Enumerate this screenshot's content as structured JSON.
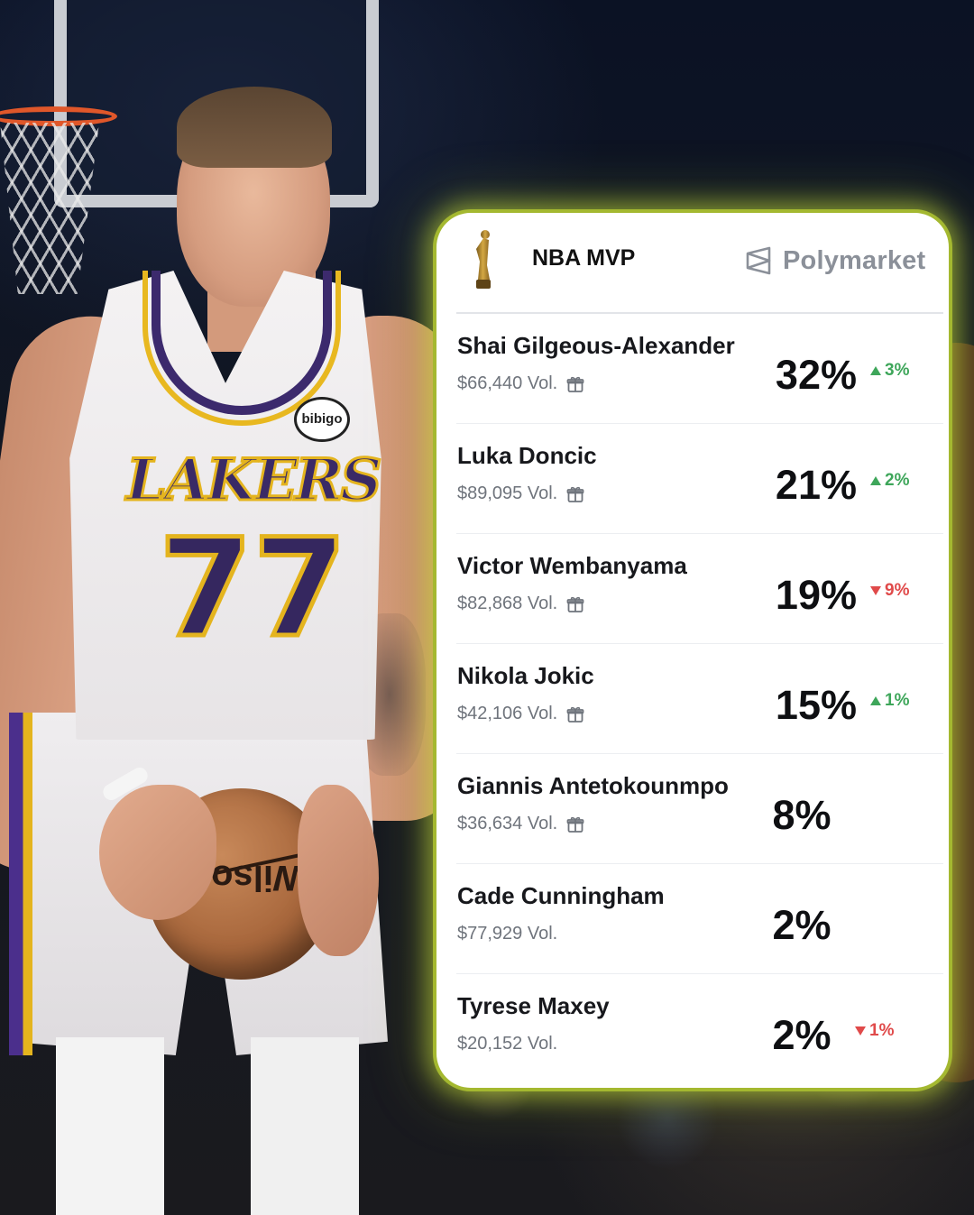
{
  "card": {
    "title": "NBA MVP",
    "brand": "Polymarket",
    "colors": {
      "up": "#3ea65a",
      "down": "#e04a4a",
      "glow": "#cde63c"
    },
    "candidates": [
      {
        "name": "Shai Gilgeous-Alexander",
        "volume": "$66,440 Vol.",
        "gift_icon": true,
        "probability": "32%",
        "change": "3%",
        "direction": "up"
      },
      {
        "name": "Luka Doncic",
        "volume": "$89,095 Vol.",
        "gift_icon": true,
        "probability": "21%",
        "change": "2%",
        "direction": "up"
      },
      {
        "name": "Victor Wembanyama",
        "volume": "$82,868 Vol.",
        "gift_icon": true,
        "probability": "19%",
        "change": "9%",
        "direction": "down"
      },
      {
        "name": "Nikola Jokic",
        "volume": "$42,106 Vol.",
        "gift_icon": true,
        "probability": "15%",
        "change": "1%",
        "direction": "up"
      },
      {
        "name": "Giannis Antetokounmpo",
        "volume": "$36,634 Vol.",
        "gift_icon": true,
        "probability": "8%",
        "change": "",
        "direction": "none"
      },
      {
        "name": "Cade Cunningham",
        "volume": "$77,929 Vol.",
        "gift_icon": false,
        "probability": "2%",
        "change": "",
        "direction": "none"
      },
      {
        "name": "Tyrese Maxey",
        "volume": "$20,152 Vol.",
        "gift_icon": false,
        "probability": "2%",
        "change": "1%",
        "direction": "down"
      }
    ]
  },
  "photo": {
    "jersey_team": "LAKERS",
    "jersey_number": "77",
    "sponsor_patch": "bibigo",
    "ball_logo": "Wilson"
  }
}
